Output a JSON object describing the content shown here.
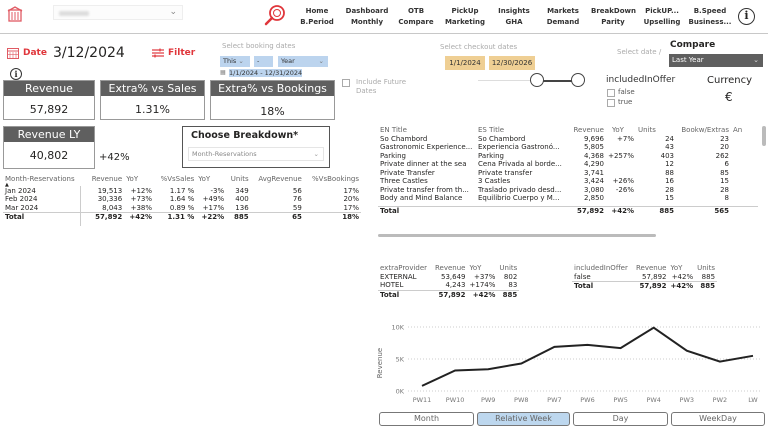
{
  "header": {
    "hotel_select_placeholder": "",
    "nav": [
      {
        "top": "Home",
        "bottom": "B.Period"
      },
      {
        "top": "Dashboard",
        "bottom": "Monthly"
      },
      {
        "top": "OTB",
        "bottom": "Compare"
      },
      {
        "top": "PickUp",
        "bottom": "Marketing"
      },
      {
        "top": "Insights",
        "bottom": "GHA"
      },
      {
        "top": "Markets",
        "bottom": "Demand"
      },
      {
        "top": "BreakDown",
        "bottom": "Parity"
      },
      {
        "top": "PickUP...",
        "bottom": "Upselling"
      },
      {
        "top": "B.Speed",
        "bottom": "Business..."
      }
    ],
    "info_glyph": "i"
  },
  "filters": {
    "date_label": "Date",
    "date_value": "3/12/2024",
    "filter_label": "Filter",
    "booking_dates_label": "Select booking dates",
    "booking_relative": "This",
    "booking_dash": "-",
    "booking_unit": "Year",
    "booking_range": "1/1/2024 - 12/31/2024",
    "checkout_dates_label": "Select checkout dates",
    "checkout_start": "1/1/2024",
    "checkout_end": "12/30/2026",
    "include_future_label": "Include Future Dates",
    "select_date_label": "Select date /",
    "compare_label": "Compare",
    "compare_value": "Last Year",
    "included_in_offer_label": "includedInOffer",
    "included_in_offer_options": [
      "false",
      "true"
    ],
    "currency_label": "Currency",
    "currency_value": "€",
    "chevron": "⌄"
  },
  "kpis": {
    "revenue": {
      "label": "Revenue",
      "value": "57,892"
    },
    "extra_vs_sales": {
      "label": "Extra% vs Sales",
      "value": "1.31%"
    },
    "extra_vs_bookings": {
      "label": "Extra% vs Bookings",
      "value": "18%"
    },
    "revenue_ly": {
      "label": "Revenue LY",
      "value": "40,802"
    },
    "revenue_yoy": "+42%"
  },
  "breakdown": {
    "title": "Choose Breakdown*",
    "value": "Month-Reservations"
  },
  "month_table": {
    "headers": [
      "Month-Reservations",
      "Revenue",
      "YoY",
      "%VsSales",
      "YoY",
      "Units",
      "AvgRevenue",
      "%VsBookings"
    ],
    "rows": [
      [
        "Jan 2024",
        "19,513",
        "+12%",
        "1.17 %",
        "-3%",
        "349",
        "56",
        "17%"
      ],
      [
        "Feb 2024",
        "30,336",
        "+73%",
        "1.64 %",
        "+49%",
        "400",
        "76",
        "20%"
      ],
      [
        "Mar 2024",
        "8,043",
        "+38%",
        "0.89 %",
        "+17%",
        "136",
        "59",
        "17%"
      ]
    ],
    "total": [
      "Total",
      "57,892",
      "+42%",
      "1.31 %",
      "+22%",
      "885",
      "65",
      "18%"
    ]
  },
  "extras_table": {
    "headers": [
      "EN Title",
      "ES Title",
      "Revenue",
      "YoY",
      "Units",
      "Bookw/Extras",
      "An"
    ],
    "rows": [
      [
        "So Chambord",
        "So Chambord",
        "9,696",
        "+7%",
        "24",
        "23"
      ],
      [
        "Gastronomic Experience...",
        "Experiencia Gastronó...",
        "5,805",
        "",
        "43",
        "20"
      ],
      [
        "Parking",
        "Parking",
        "4,368",
        "+257%",
        "403",
        "262"
      ],
      [
        "Private dinner at the sea",
        "Cena Privada al borde...",
        "4,290",
        "",
        "12",
        "6"
      ],
      [
        "Private Transfer",
        "Private transfer",
        "3,741",
        "",
        "88",
        "85"
      ],
      [
        "Three Castles",
        "3 Castles",
        "3,424",
        "+26%",
        "16",
        "15"
      ],
      [
        "Private transfer from th...",
        "Traslado privado desd...",
        "3,080",
        "-26%",
        "28",
        "28"
      ],
      [
        "Body and Mind Balance",
        "Equilibrio Cuerpo y M...",
        "2,850",
        "",
        "15",
        "8"
      ]
    ],
    "total": [
      "Total",
      "",
      "57,892",
      "+42%",
      "885",
      "565"
    ]
  },
  "provider_table": {
    "headers": [
      "extraProvider",
      "Revenue",
      "YoY",
      "Units"
    ],
    "rows": [
      [
        "EXTERNAL",
        "53,649",
        "+37%",
        "802"
      ],
      [
        "HOTEL",
        "4,243",
        "+174%",
        "83"
      ]
    ],
    "total": [
      "Total",
      "57,892",
      "+42%",
      "885"
    ]
  },
  "offer_table": {
    "headers": [
      "includedInOffer",
      "Revenue",
      "YoY",
      "Units"
    ],
    "rows": [
      [
        "false",
        "57,892",
        "+42%",
        "885"
      ]
    ],
    "total": [
      "Total",
      "57,892",
      "+42%",
      "885"
    ]
  },
  "chart_data": {
    "type": "line",
    "title": "",
    "xlabel": "",
    "ylabel": "Revenue",
    "categories": [
      "PW11",
      "PW10",
      "PW9",
      "PW8",
      "PW7",
      "PW6",
      "PW5",
      "PW4",
      "PW3",
      "PW2",
      "LW"
    ],
    "values": [
      800,
      3200,
      3400,
      4300,
      6900,
      7200,
      6700,
      9900,
      6300,
      4600,
      5500
    ],
    "yticks": [
      "0K",
      "5K",
      "10K"
    ],
    "ylim": [
      0,
      10000
    ],
    "grid": true
  },
  "granularity_buttons": [
    {
      "label": "Month",
      "active": false
    },
    {
      "label": "Relative Week",
      "active": true
    },
    {
      "label": "Day",
      "active": false
    },
    {
      "label": "WeekDay",
      "active": false
    }
  ]
}
